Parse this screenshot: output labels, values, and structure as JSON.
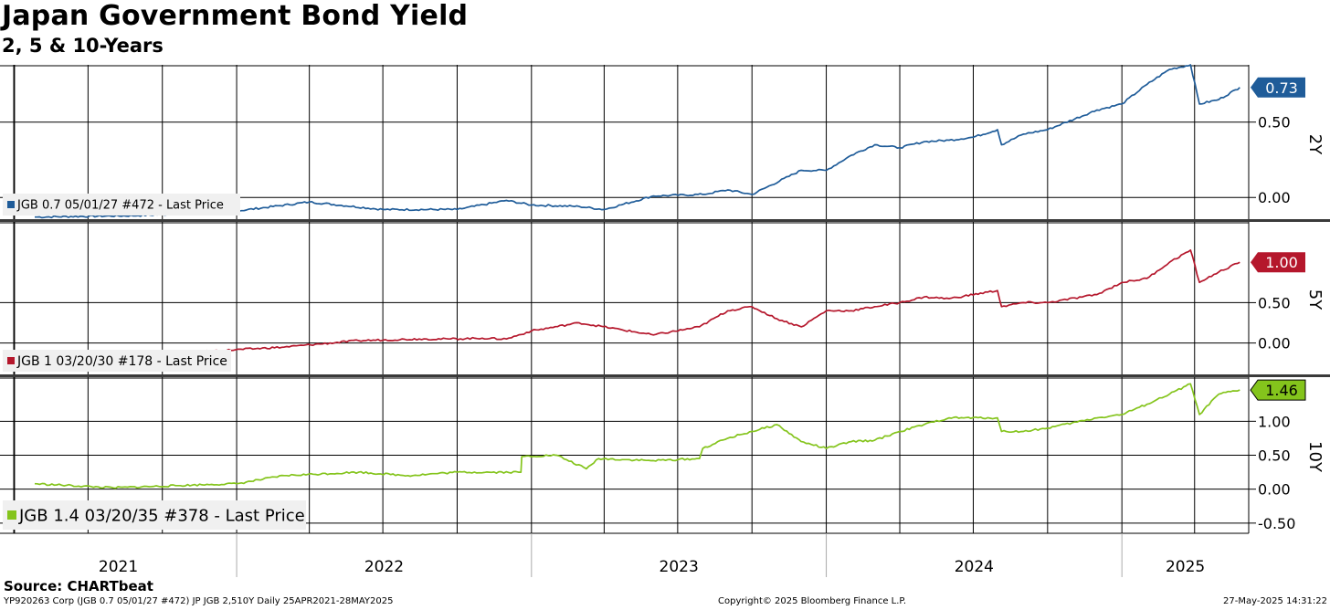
{
  "title": "Japan Government Bond Yield",
  "subtitle": "2, 5 & 10-Years",
  "source": "Source: CHARTbeat",
  "footer": {
    "left": "YP920263 Corp (JGB 0.7 05/01/27 #472) JP JGB 2,510Y  Daily 25APR2021-28MAY2025",
    "center": "Copyright© 2025 Bloomberg Finance L.P.",
    "right": "27-May-2025 14:31:22"
  },
  "chart_data": [
    {
      "type": "line",
      "panel_label": "2Y",
      "series": [
        {
          "name": "JGB 0.7 05/01/27 #472 - Last Price",
          "color": "#1f5c99"
        }
      ],
      "last_value_label": "0.73",
      "y_ticks": [
        "0.50",
        "0.00"
      ],
      "ylim": [
        -0.15,
        0.88
      ],
      "x": [
        "2021-04-26",
        "2021-09-01",
        "2022-01-01",
        "2022-04-01",
        "2022-07-01",
        "2022-10-01",
        "2022-12-01",
        "2023-01-01",
        "2023-03-01",
        "2023-04-01",
        "2023-06-01",
        "2023-08-01",
        "2023-09-01",
        "2023-10-01",
        "2023-12-01",
        "2024-01-01",
        "2024-02-01",
        "2024-03-01",
        "2024-04-01",
        "2024-05-01",
        "2024-06-01",
        "2024-07-01",
        "2024-07-31",
        "2024-08-05",
        "2024-09-01",
        "2024-10-01",
        "2024-12-01",
        "2025-01-01",
        "2025-02-01",
        "2025-03-01",
        "2025-03-27",
        "2025-04-07",
        "2025-05-01",
        "2025-05-27"
      ],
      "values": [
        -0.13,
        -0.12,
        -0.09,
        -0.03,
        -0.08,
        -0.08,
        -0.02,
        -0.05,
        -0.06,
        -0.08,
        0.01,
        0.02,
        0.05,
        0.02,
        0.18,
        0.18,
        0.28,
        0.35,
        0.33,
        0.37,
        0.38,
        0.4,
        0.45,
        0.35,
        0.42,
        0.45,
        0.58,
        0.62,
        0.75,
        0.85,
        0.88,
        0.62,
        0.65,
        0.73
      ]
    },
    {
      "type": "line",
      "panel_label": "5Y",
      "series": [
        {
          "name": "JGB 1 03/20/30 #178 - Last Price",
          "color": "#b5172c"
        }
      ],
      "last_value_label": "1.00",
      "y_ticks": [
        "0.50",
        "0.00"
      ],
      "ylim": [
        -0.4,
        1.5
      ],
      "x": [
        "2021-04-26",
        "2021-08-01",
        "2021-12-01",
        "2022-03-01",
        "2022-06-01",
        "2022-08-15",
        "2022-09-20",
        "2022-11-01",
        "2022-12-01",
        "2023-01-01",
        "2023-03-01",
        "2023-06-01",
        "2023-07-28",
        "2023-09-01",
        "2023-10-01",
        "2023-11-01",
        "2023-12-01",
        "2024-01-01",
        "2024-02-01",
        "2024-03-01",
        "2024-04-01",
        "2024-05-01",
        "2024-06-01",
        "2024-07-31",
        "2024-08-05",
        "2024-09-01",
        "2024-10-01",
        "2024-12-01",
        "2025-01-01",
        "2025-02-01",
        "2025-03-01",
        "2025-03-27",
        "2025-04-07",
        "2025-05-01",
        "2025-05-27"
      ],
      "values": [
        -0.12,
        -0.13,
        -0.1,
        -0.05,
        0.03,
        0.05,
        0.05,
        0.06,
        0.05,
        0.15,
        0.25,
        0.1,
        0.2,
        0.4,
        0.45,
        0.3,
        0.2,
        0.4,
        0.4,
        0.45,
        0.5,
        0.57,
        0.55,
        0.65,
        0.45,
        0.5,
        0.5,
        0.6,
        0.75,
        0.8,
        1.0,
        1.15,
        0.75,
        0.88,
        1.0
      ]
    },
    {
      "type": "line",
      "panel_label": "10Y",
      "series": [
        {
          "name": "JGB 1.4 03/20/35 #378 - Last Price",
          "color": "#84c41c"
        }
      ],
      "last_value_label": "1.46",
      "y_ticks": [
        "1.00",
        "0.50",
        "0.00",
        "-0.50"
      ],
      "ylim": [
        -0.65,
        1.65
      ],
      "x": [
        "2021-04-26",
        "2021-08-01",
        "2021-12-01",
        "2022-01-01",
        "2022-03-01",
        "2022-06-01",
        "2022-08-01",
        "2022-10-01",
        "2022-12-19",
        "2022-12-20",
        "2023-01-31",
        "2023-02-01",
        "2023-03-10",
        "2023-03-25",
        "2023-06-01",
        "2023-07-28",
        "2023-08-01",
        "2023-09-01",
        "2023-10-01",
        "2023-11-01",
        "2023-12-01",
        "2024-01-01",
        "2024-02-01",
        "2024-03-01",
        "2024-04-01",
        "2024-05-01",
        "2024-06-01",
        "2024-07-31",
        "2024-08-05",
        "2024-09-01",
        "2024-10-01",
        "2024-12-01",
        "2025-01-01",
        "2025-02-01",
        "2025-03-01",
        "2025-03-27",
        "2025-04-07",
        "2025-05-01",
        "2025-05-27"
      ],
      "values": [
        0.08,
        0.02,
        0.07,
        0.08,
        0.2,
        0.25,
        0.2,
        0.25,
        0.25,
        0.48,
        0.5,
        0.5,
        0.3,
        0.45,
        0.42,
        0.45,
        0.6,
        0.75,
        0.85,
        0.95,
        0.7,
        0.6,
        0.7,
        0.72,
        0.85,
        0.95,
        1.05,
        1.05,
        0.85,
        0.85,
        0.9,
        1.05,
        1.1,
        1.25,
        1.4,
        1.55,
        1.1,
        1.4,
        1.46
      ]
    }
  ],
  "x_axis": {
    "year_labels": [
      "2021",
      "2022",
      "2023",
      "2024",
      "2025"
    ],
    "range": [
      "2021-03-14",
      "2025-06-07"
    ]
  }
}
